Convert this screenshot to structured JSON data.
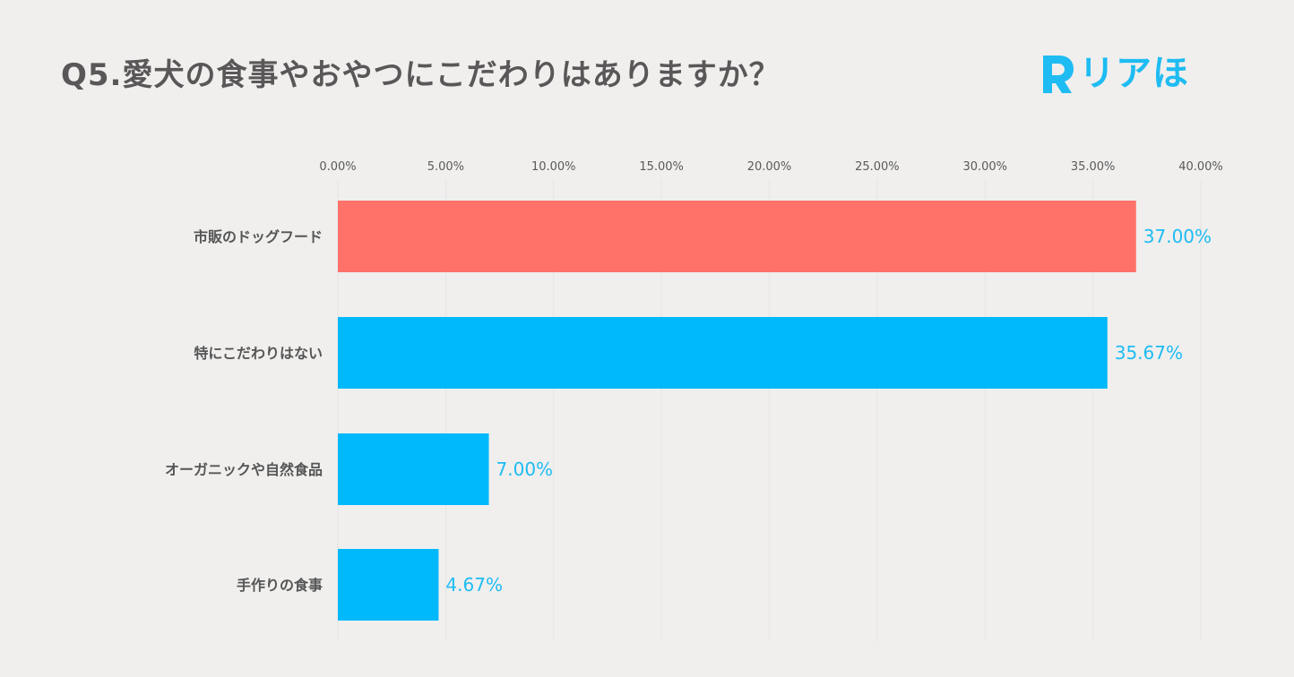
{
  "title": "Q5.愛犬の食事やおやつにこだわりはありますか？",
  "logo": {
    "text": "リアほ",
    "mark": "R"
  },
  "colors": {
    "highlight": "#ff726a",
    "bar": "#00b9fc",
    "value_text": "#1ebcf2"
  },
  "chart_data": {
    "type": "bar",
    "orientation": "horizontal",
    "title": "Q5.愛犬の食事やおやつにこだわりはありますか？",
    "categories": [
      "市販のドッグフード",
      "特にこだわりはない",
      "オーガニックや自然食品",
      "手作りの食事"
    ],
    "values": [
      37.0,
      35.67,
      7.0,
      4.67
    ],
    "value_labels": [
      "37.00%",
      "35.67%",
      "7.00%",
      "4.67%"
    ],
    "highlight_index": 0,
    "xlim": [
      0,
      40
    ],
    "xticks": [
      0,
      5,
      10,
      15,
      20,
      25,
      30,
      35,
      40
    ],
    "xtick_labels": [
      "0.00%",
      "5.00%",
      "10.00%",
      "15.00%",
      "20.00%",
      "25.00%",
      "30.00%",
      "35.00%",
      "40.00%"
    ],
    "axis_position": "top",
    "grid": true
  }
}
